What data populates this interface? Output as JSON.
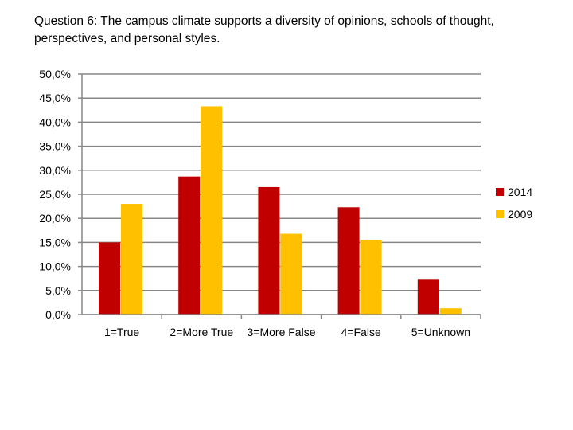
{
  "slide": {
    "title": "Question 6: The campus climate supports a diversity of opinions, schools of thought, perspectives, and personal styles."
  },
  "chart_data": {
    "type": "bar",
    "title": "Question 6: The campus climate supports a diversity of opinions, schools of thought, perspectives, and personal styles.",
    "categories": [
      "1=True",
      "2=More True",
      "3=More False",
      "4=False",
      "5=Unknown"
    ],
    "series": [
      {
        "name": "2014",
        "color": "#c00000",
        "values": [
          15.0,
          28.7,
          26.5,
          22.3,
          7.4
        ]
      },
      {
        "name": "2009",
        "color": "#ffc000",
        "values": [
          23.0,
          43.3,
          16.8,
          15.5,
          1.3
        ]
      }
    ],
    "ylim": [
      0,
      50
    ],
    "yticks": [
      "0,0%",
      "5,0%",
      "10,0%",
      "15,0%",
      "20,0%",
      "25,0%",
      "30,0%",
      "35,0%",
      "40,0%",
      "45,0%",
      "50,0%"
    ],
    "ytick_step": 5,
    "grid": true,
    "legend": "right",
    "xlabel": "",
    "ylabel": ""
  }
}
